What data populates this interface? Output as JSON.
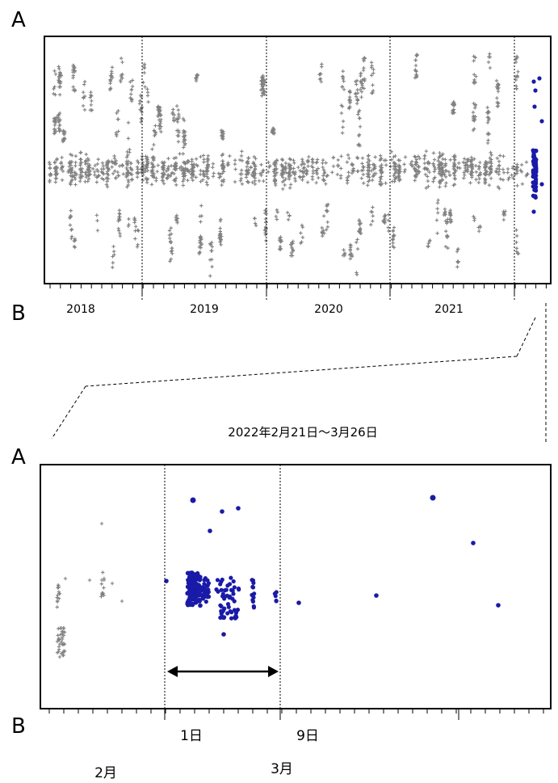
{
  "chart_data": [
    {
      "type": "scatter",
      "panel": "top",
      "top_label": "A",
      "bottom_label": "B",
      "x_tick_labels": [
        "2018",
        "2019",
        "2020",
        "2021"
      ],
      "x_divisions": [
        "2018",
        "2019",
        "2020",
        "2021",
        "2022"
      ],
      "series": [
        {
          "marker": "cross",
          "color": "#808080",
          "description_values": "events 2018–2021 (plotted as dense vertical streaks)"
        },
        {
          "marker": "dot",
          "color": "#1a1aa8",
          "description_values": "events from 2022-02-21"
        }
      ],
      "grid": false
    },
    {
      "type": "scatter",
      "panel": "bottom",
      "title": "2022年2月21日～3月26日",
      "top_label": "A",
      "bottom_label": "B",
      "x_tick_labels": [
        "1日",
        "9日"
      ],
      "month_labels": [
        "2月",
        "3月"
      ],
      "series": [
        {
          "marker": "cross",
          "color": "#808080"
        },
        {
          "marker": "dot",
          "color": "#1a1aa8"
        }
      ],
      "annotation": "double-headed arrow spanning 1日 to 9日",
      "grid": false
    }
  ],
  "colors": {
    "gray": "#808080",
    "blue": "#1a1aa8",
    "axis": "#000000"
  }
}
